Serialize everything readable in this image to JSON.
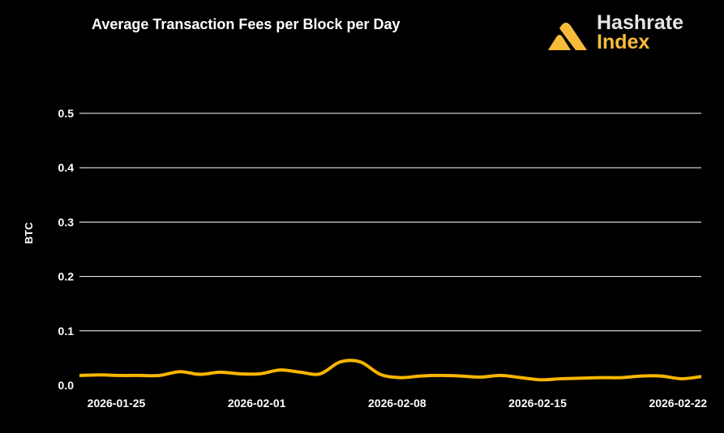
{
  "logo": {
    "line1": "Hashrate",
    "line2": "Index",
    "color": "#f7bd3a"
  },
  "chart_data": {
    "type": "line",
    "title": "Average Transaction Fees per Block per Day",
    "xlabel": "",
    "ylabel": "BTC",
    "ylim": [
      0,
      0.5
    ],
    "yticks": [
      "0.0",
      "0.1",
      "0.2",
      "0.3",
      "0.4",
      "0.5"
    ],
    "xticks": [
      "2026-01-25",
      "2026-02-01",
      "2026-02-08",
      "2026-02-15",
      "2026-02-22"
    ],
    "grid": true,
    "line_color": "#f7b500",
    "x": [
      "2026-01-23",
      "2026-01-24",
      "2026-01-25",
      "2026-01-26",
      "2026-01-27",
      "2026-01-28",
      "2026-01-29",
      "2026-01-30",
      "2026-01-31",
      "2026-02-01",
      "2026-02-02",
      "2026-02-03",
      "2026-02-04",
      "2026-02-05",
      "2026-02-06",
      "2026-02-07",
      "2026-02-08",
      "2026-02-09",
      "2026-02-10",
      "2026-02-11",
      "2026-02-12",
      "2026-02-13",
      "2026-02-14",
      "2026-02-15",
      "2026-02-16",
      "2026-02-17",
      "2026-02-18",
      "2026-02-19",
      "2026-02-20",
      "2026-02-21",
      "2026-02-22",
      "2026-02-23"
    ],
    "values": [
      0.018,
      0.019,
      0.018,
      0.018,
      0.018,
      0.025,
      0.02,
      0.024,
      0.021,
      0.021,
      0.028,
      0.024,
      0.021,
      0.043,
      0.043,
      0.02,
      0.014,
      0.017,
      0.018,
      0.017,
      0.015,
      0.018,
      0.014,
      0.01,
      0.012,
      0.013,
      0.014,
      0.014,
      0.017,
      0.017,
      0.012,
      0.016
    ]
  }
}
